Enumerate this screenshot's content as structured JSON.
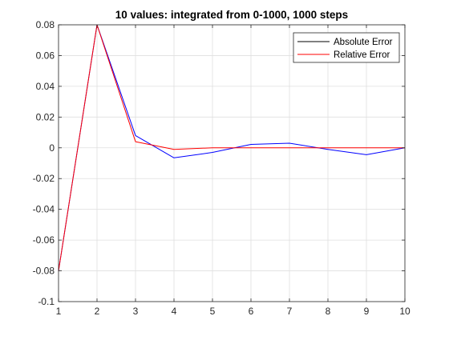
{
  "chart_data": {
    "type": "line",
    "title": "10 values: integrated from 0-1000, 1000 steps",
    "xlabel": "",
    "ylabel": "",
    "xlim": [
      1,
      10
    ],
    "ylim": [
      -0.1,
      0.08
    ],
    "x_ticks": [
      1,
      2,
      3,
      4,
      5,
      6,
      7,
      8,
      9,
      10
    ],
    "y_ticks": [
      -0.1,
      -0.08,
      -0.06,
      -0.04,
      -0.02,
      0,
      0.02,
      0.04,
      0.06,
      0.08
    ],
    "x_tick_labels": [
      "1",
      "2",
      "3",
      "4",
      "5",
      "6",
      "7",
      "8",
      "9",
      "10"
    ],
    "y_tick_labels": [
      "-0.1",
      "-0.08",
      "-0.06",
      "-0.04",
      "-0.02",
      "0",
      "0.02",
      "0.04",
      "0.06",
      "0.08"
    ],
    "grid": true,
    "legend_placement": "top-right",
    "x": [
      1,
      2,
      3,
      4,
      5,
      6,
      7,
      8,
      9,
      10
    ],
    "series": [
      {
        "name": "Absolute Error",
        "legend_color": "#000000",
        "line_color": "#0000ff",
        "values": [
          -0.08,
          0.08,
          0.008,
          -0.0065,
          -0.003,
          0.0022,
          0.003,
          -0.001,
          -0.0045,
          0.0
        ]
      },
      {
        "name": "Relative Error",
        "legend_color": "#ff0000",
        "line_color": "#ff0000",
        "values": [
          -0.08,
          0.08,
          0.004,
          -0.001,
          0.0,
          0.0,
          0.0,
          0.0,
          0.0,
          0.0
        ]
      }
    ]
  }
}
